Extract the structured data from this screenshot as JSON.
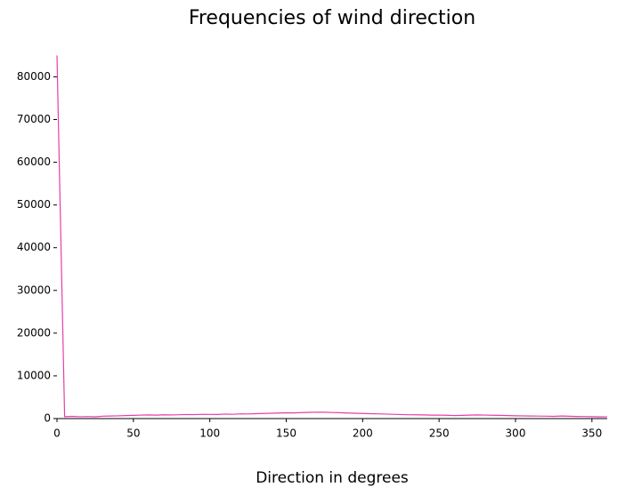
{
  "chart_data": {
    "type": "line",
    "title": "Frequencies of wind direction",
    "x_label": "Direction in degrees",
    "x": [
      0,
      5,
      10,
      15,
      20,
      25,
      30,
      35,
      40,
      45,
      50,
      55,
      60,
      65,
      70,
      75,
      80,
      85,
      90,
      95,
      100,
      105,
      110,
      115,
      120,
      125,
      130,
      135,
      140,
      145,
      150,
      155,
      160,
      165,
      170,
      175,
      180,
      185,
      190,
      195,
      200,
      205,
      210,
      215,
      220,
      225,
      230,
      235,
      240,
      245,
      250,
      255,
      260,
      265,
      270,
      275,
      280,
      285,
      290,
      295,
      300,
      305,
      310,
      315,
      320,
      325,
      330,
      335,
      340,
      345,
      350,
      355,
      360
    ],
    "values": [
      85000,
      450,
      520,
      430,
      480,
      410,
      560,
      600,
      640,
      700,
      760,
      820,
      850,
      800,
      880,
      840,
      900,
      950,
      920,
      1000,
      980,
      960,
      1050,
      1000,
      1100,
      1080,
      1150,
      1200,
      1250,
      1300,
      1350,
      1320,
      1400,
      1450,
      1500,
      1480,
      1420,
      1380,
      1300,
      1250,
      1200,
      1150,
      1100,
      1050,
      1000,
      950,
      900,
      880,
      850,
      800,
      820,
      780,
      700,
      750,
      800,
      850,
      820,
      780,
      750,
      700,
      650,
      620,
      600,
      580,
      560,
      520,
      600,
      550,
      500,
      480,
      450,
      420,
      400
    ],
    "color": "#e63ea8",
    "xlim": [
      0,
      360
    ],
    "xticks": [
      0,
      50,
      100,
      150,
      200,
      250,
      300,
      350
    ],
    "ylim": [
      0,
      85500
    ],
    "yticks": [
      0,
      10000,
      20000,
      30000,
      40000,
      50000,
      60000,
      70000,
      80000
    ],
    "grid": false
  }
}
